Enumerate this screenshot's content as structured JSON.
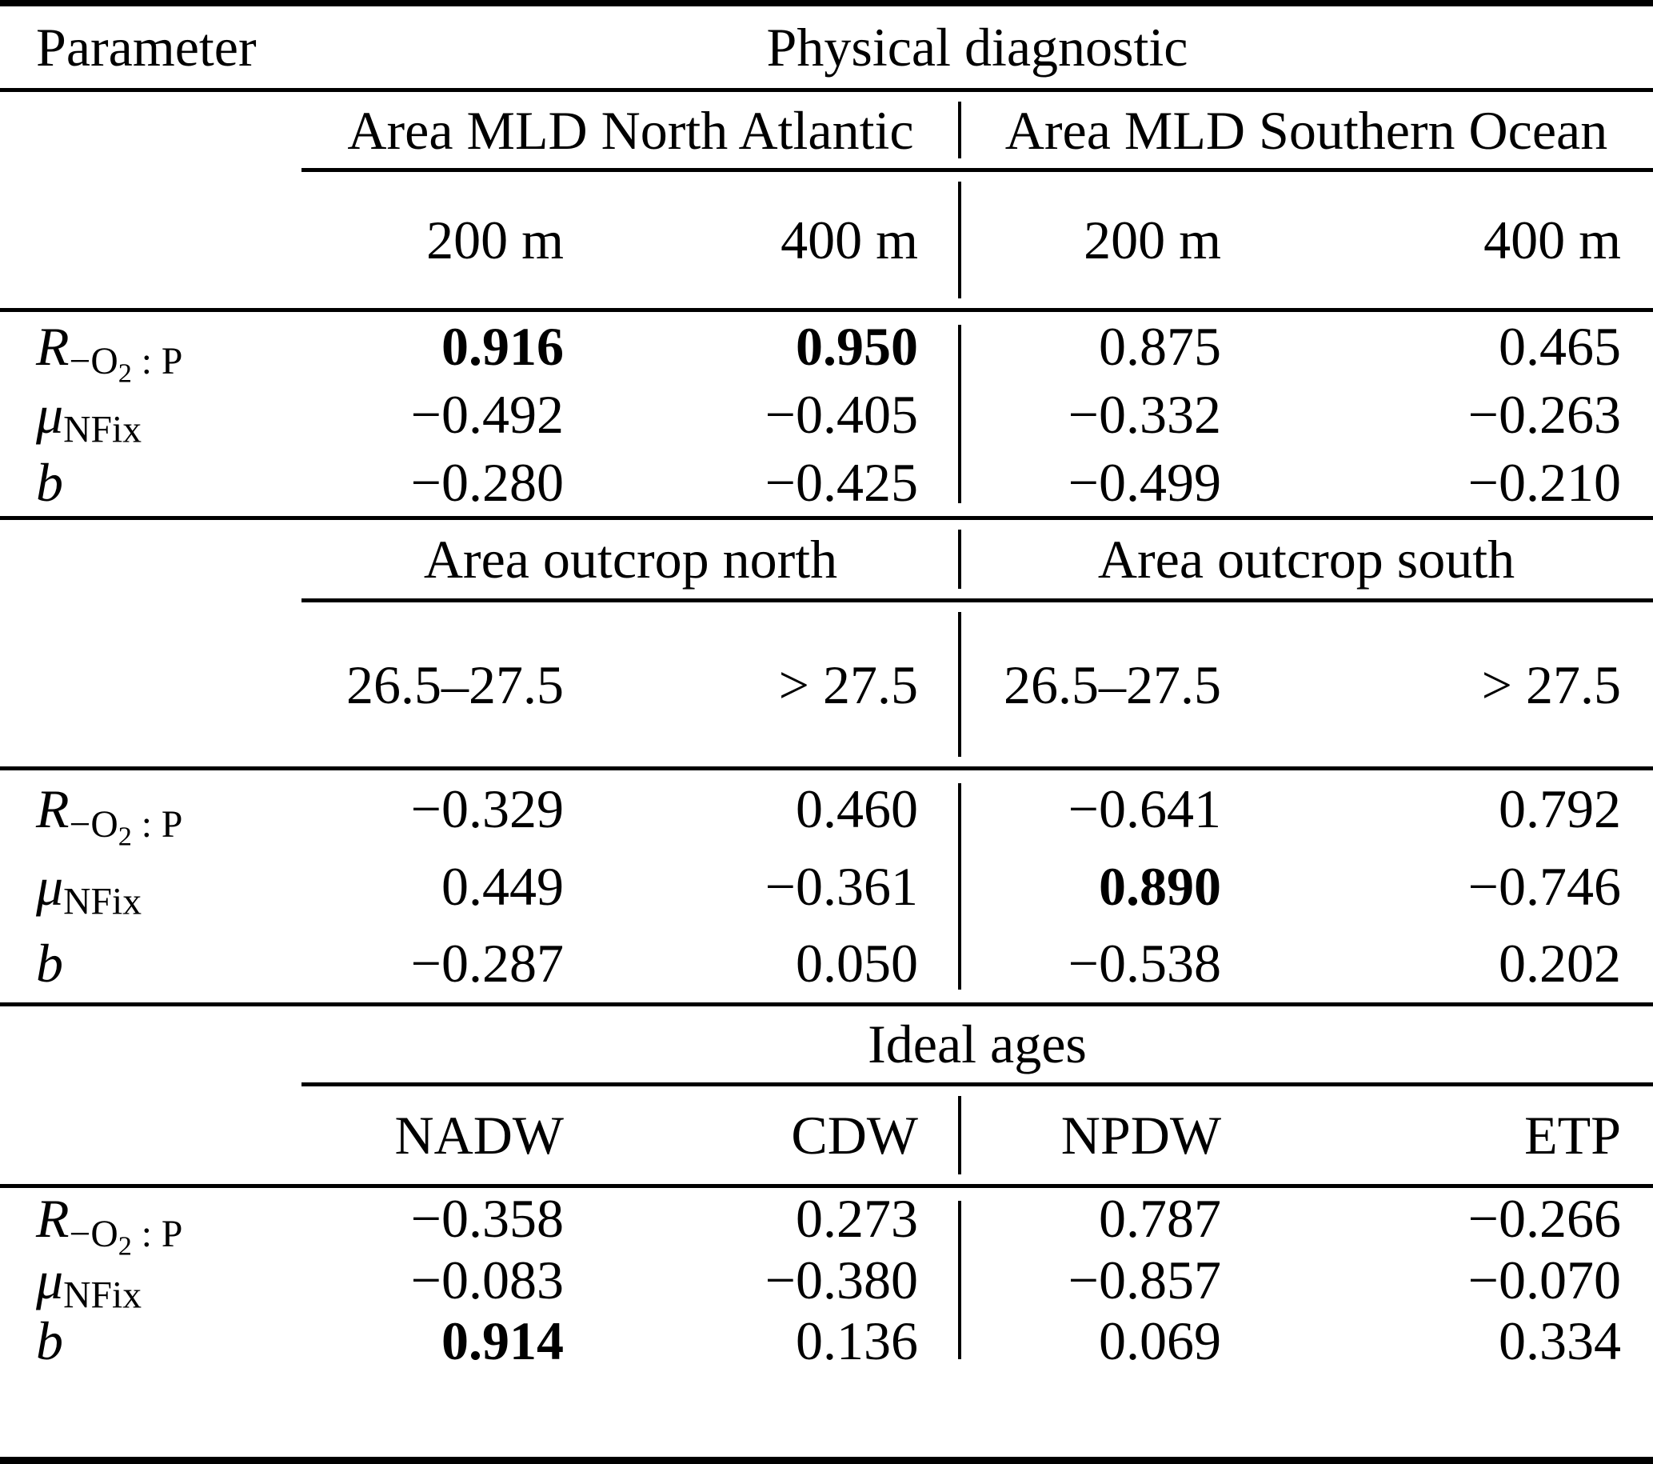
{
  "header": {
    "parameter": "Parameter",
    "diagnostic": "Physical diagnostic"
  },
  "labels": [
    {
      "main": "R",
      "sub_a": "−O",
      "sub_b": "2",
      "sub_c": " : P"
    },
    {
      "main": "μ",
      "sub_a": "NFix"
    },
    {
      "main": "b"
    }
  ],
  "sections": [
    {
      "group_left": "Area MLD North Atlantic",
      "group_right": "Area MLD Southern Ocean",
      "cols": [
        "200 m",
        "400 m",
        "200 m",
        "400 m"
      ],
      "rows": [
        [
          "0.916",
          "0.950",
          "0.875",
          "0.465"
        ],
        [
          "−0.492",
          "−0.405",
          "−0.332",
          "−0.263"
        ],
        [
          "−0.280",
          "−0.425",
          "−0.499",
          "−0.210"
        ]
      ]
    },
    {
      "group_left": "Area outcrop north",
      "group_right": "Area outcrop south",
      "cols": [
        "26.5–27.5",
        "> 27.5",
        "26.5–27.5",
        "> 27.5"
      ],
      "rows": [
        [
          "−0.329",
          "0.460",
          "−0.641",
          "0.792"
        ],
        [
          "0.449",
          "−0.361",
          "0.890",
          "−0.746"
        ],
        [
          "−0.287",
          "0.050",
          "−0.538",
          "0.202"
        ]
      ]
    },
    {
      "group_span": "Ideal ages",
      "cols": [
        "NADW",
        "CDW",
        "NPDW",
        "ETP"
      ],
      "rows": [
        [
          "−0.358",
          "0.273",
          "0.787",
          "−0.266"
        ],
        [
          "−0.083",
          "−0.380",
          "−0.857",
          "−0.070"
        ],
        [
          "0.914",
          "0.136",
          "0.069",
          "0.334"
        ]
      ]
    }
  ]
}
